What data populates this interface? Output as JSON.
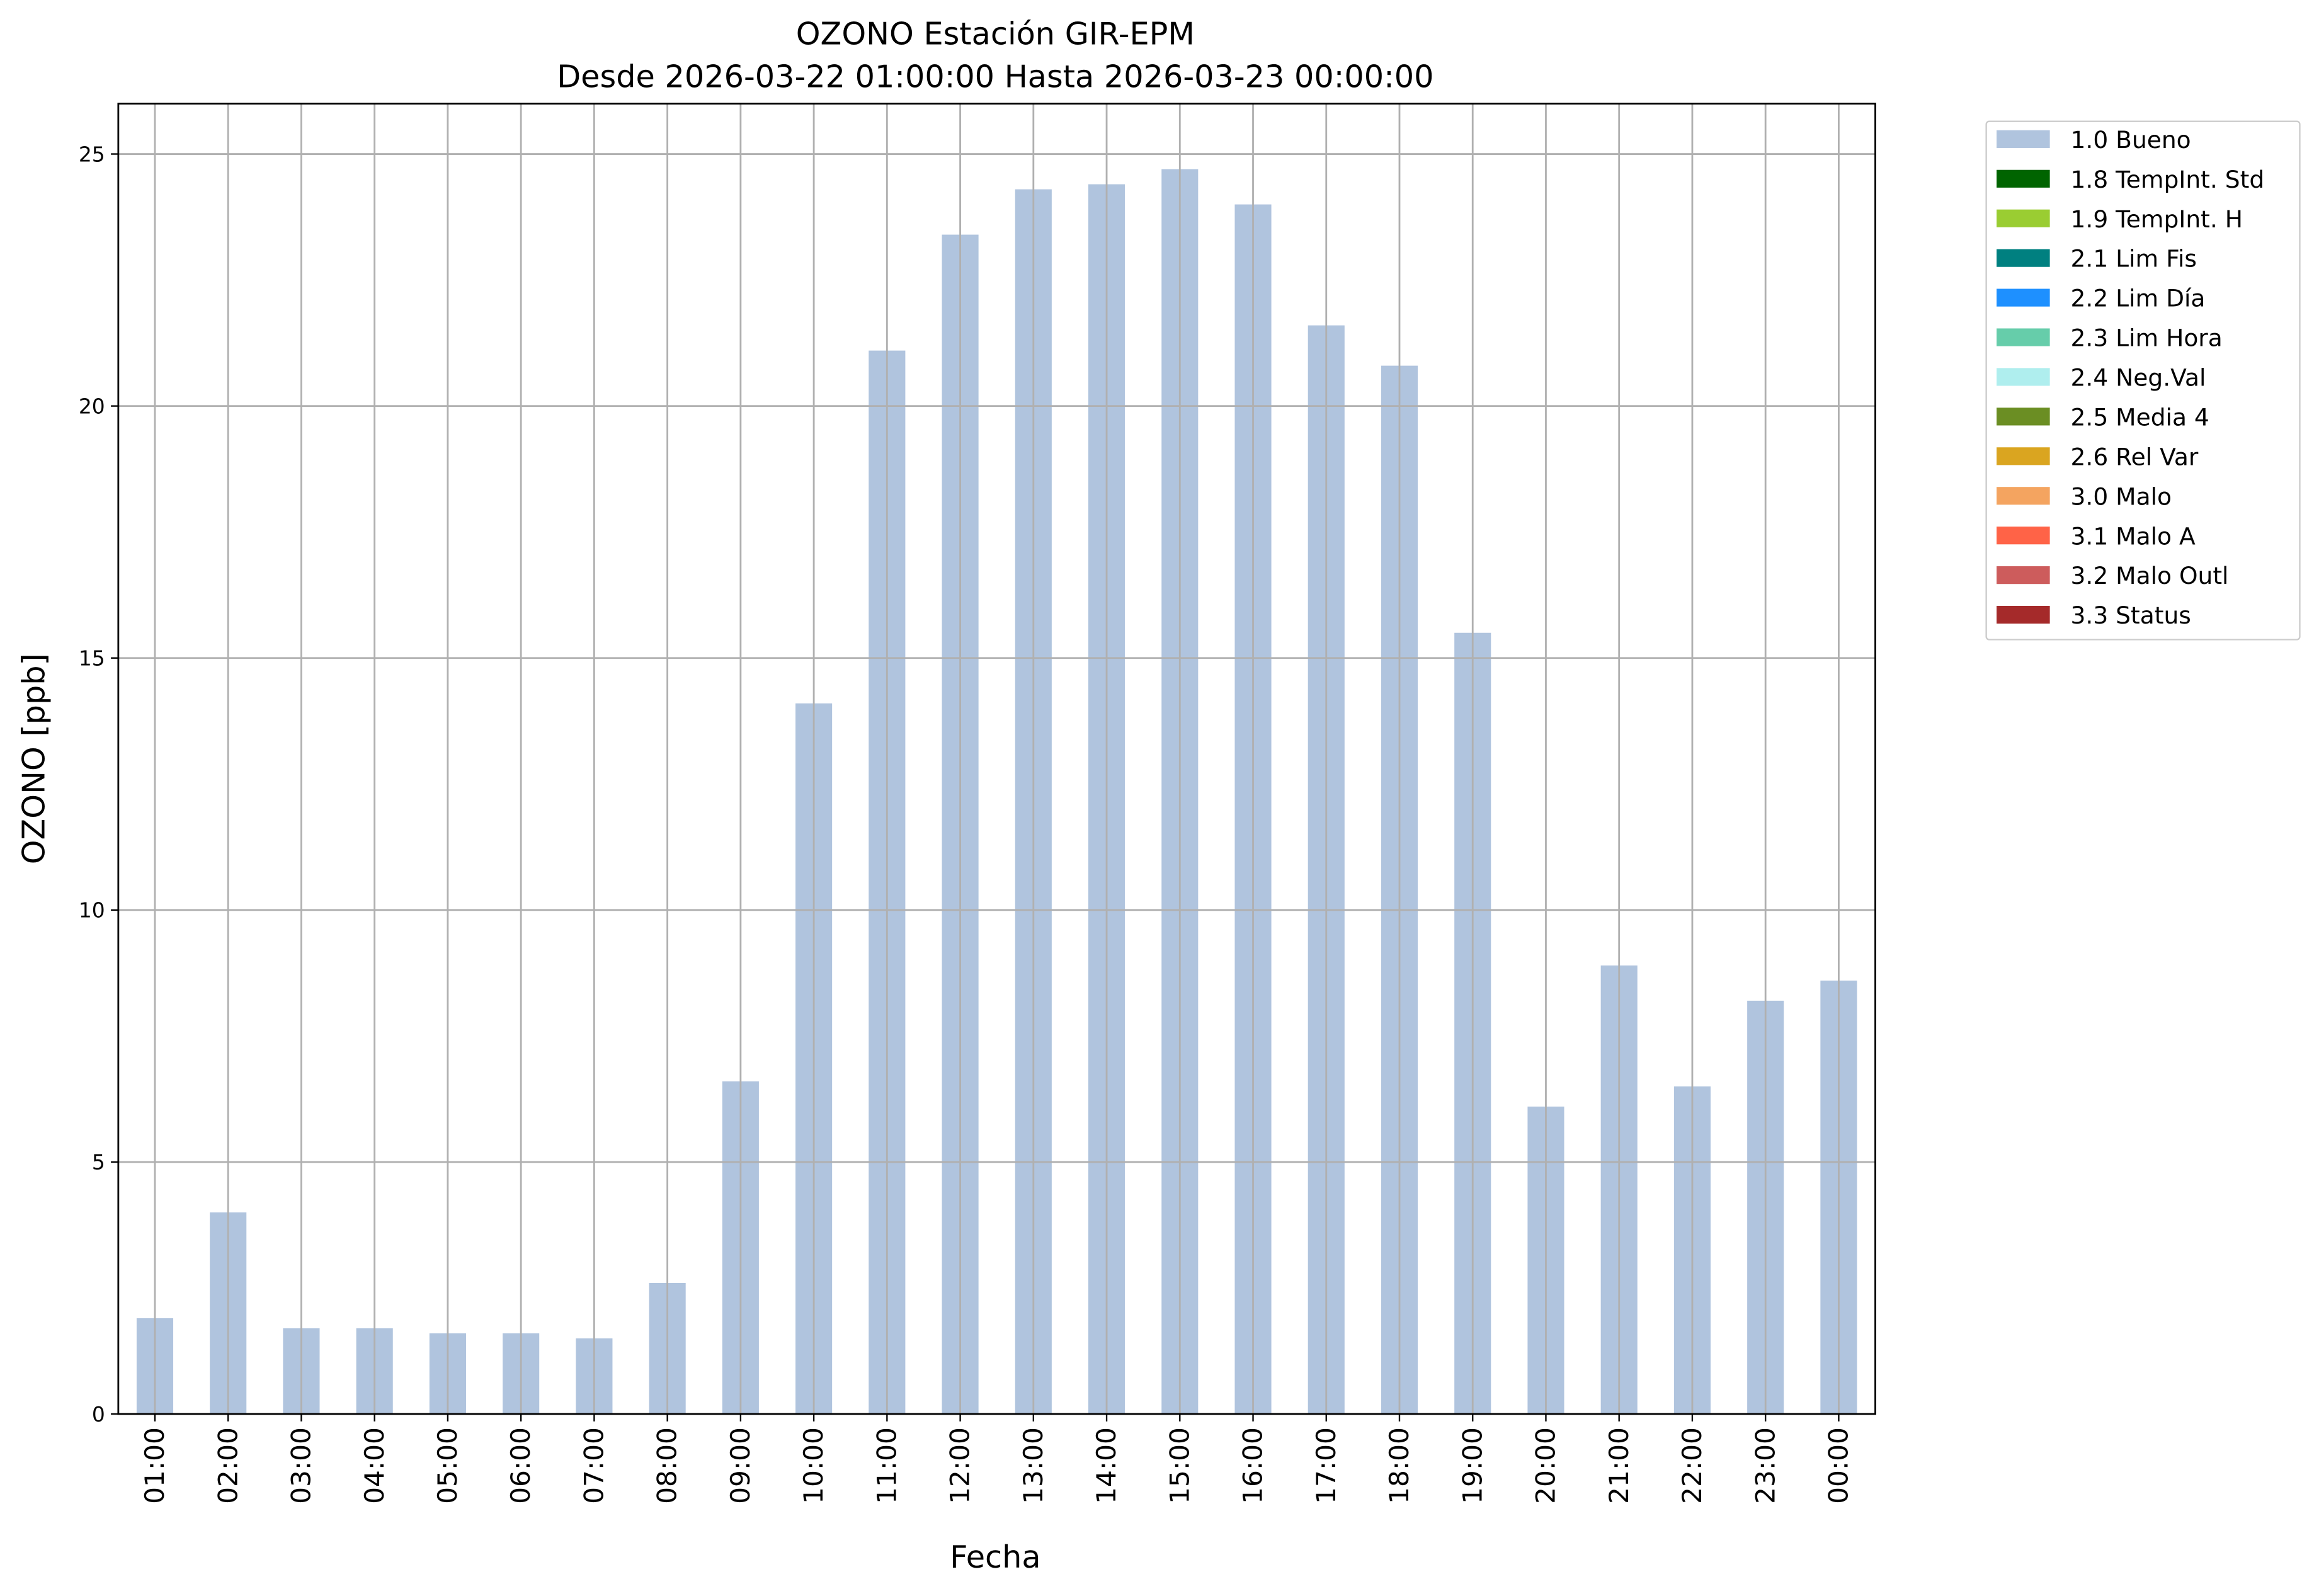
{
  "chart_data": {
    "type": "bar",
    "title": "OZONO Estación GIR-EPM",
    "subtitle": "Desde 2026-03-22 01:00:00 Hasta 2026-03-23 00:00:00",
    "x_label": "Fecha",
    "y_label": "OZONO [ppb]",
    "categories": [
      "01:00",
      "02:00",
      "03:00",
      "04:00",
      "05:00",
      "06:00",
      "07:00",
      "08:00",
      "09:00",
      "10:00",
      "11:00",
      "12:00",
      "13:00",
      "14:00",
      "15:00",
      "16:00",
      "17:00",
      "18:00",
      "19:00",
      "20:00",
      "21:00",
      "22:00",
      "23:00",
      "00:00"
    ],
    "series": [
      {
        "name": "1.0 Bueno",
        "color": "#b0c4de",
        "values": [
          1.9,
          4.0,
          1.7,
          1.7,
          1.6,
          1.6,
          1.5,
          2.6,
          6.6,
          14.1,
          21.1,
          23.4,
          24.3,
          24.4,
          24.7,
          24.0,
          21.6,
          20.8,
          15.5,
          6.1,
          8.9,
          6.5,
          8.2,
          8.6
        ]
      }
    ],
    "legend_entries": [
      {
        "name": "1.0 Bueno",
        "color": "#b0c4de"
      },
      {
        "name": "1.8 TempInt. Std",
        "color": "#006400"
      },
      {
        "name": "1.9 TempInt. H",
        "color": "#9acd32"
      },
      {
        "name": "2.1 Lim Fis",
        "color": "#008080"
      },
      {
        "name": "2.2 Lim Día",
        "color": "#1e90ff"
      },
      {
        "name": "2.3 Lim Hora",
        "color": "#66cdaa"
      },
      {
        "name": "2.4 Neg.Val",
        "color": "#afeeee"
      },
      {
        "name": "2.5 Media 4",
        "color": "#6b8e23"
      },
      {
        "name": "2.6 Rel Var",
        "color": "#daa520"
      },
      {
        "name": "3.0 Malo",
        "color": "#f4a460"
      },
      {
        "name": "3.1 Malo A",
        "color": "#ff6347"
      },
      {
        "name": "3.2 Malo Outl",
        "color": "#cd5c5c"
      },
      {
        "name": "3.3 Status",
        "color": "#a52a2a"
      }
    ],
    "ylim": [
      0,
      26
    ],
    "yticks": [
      0,
      5,
      10,
      15,
      20,
      25
    ],
    "grid": true,
    "legend_position": "outside right"
  }
}
